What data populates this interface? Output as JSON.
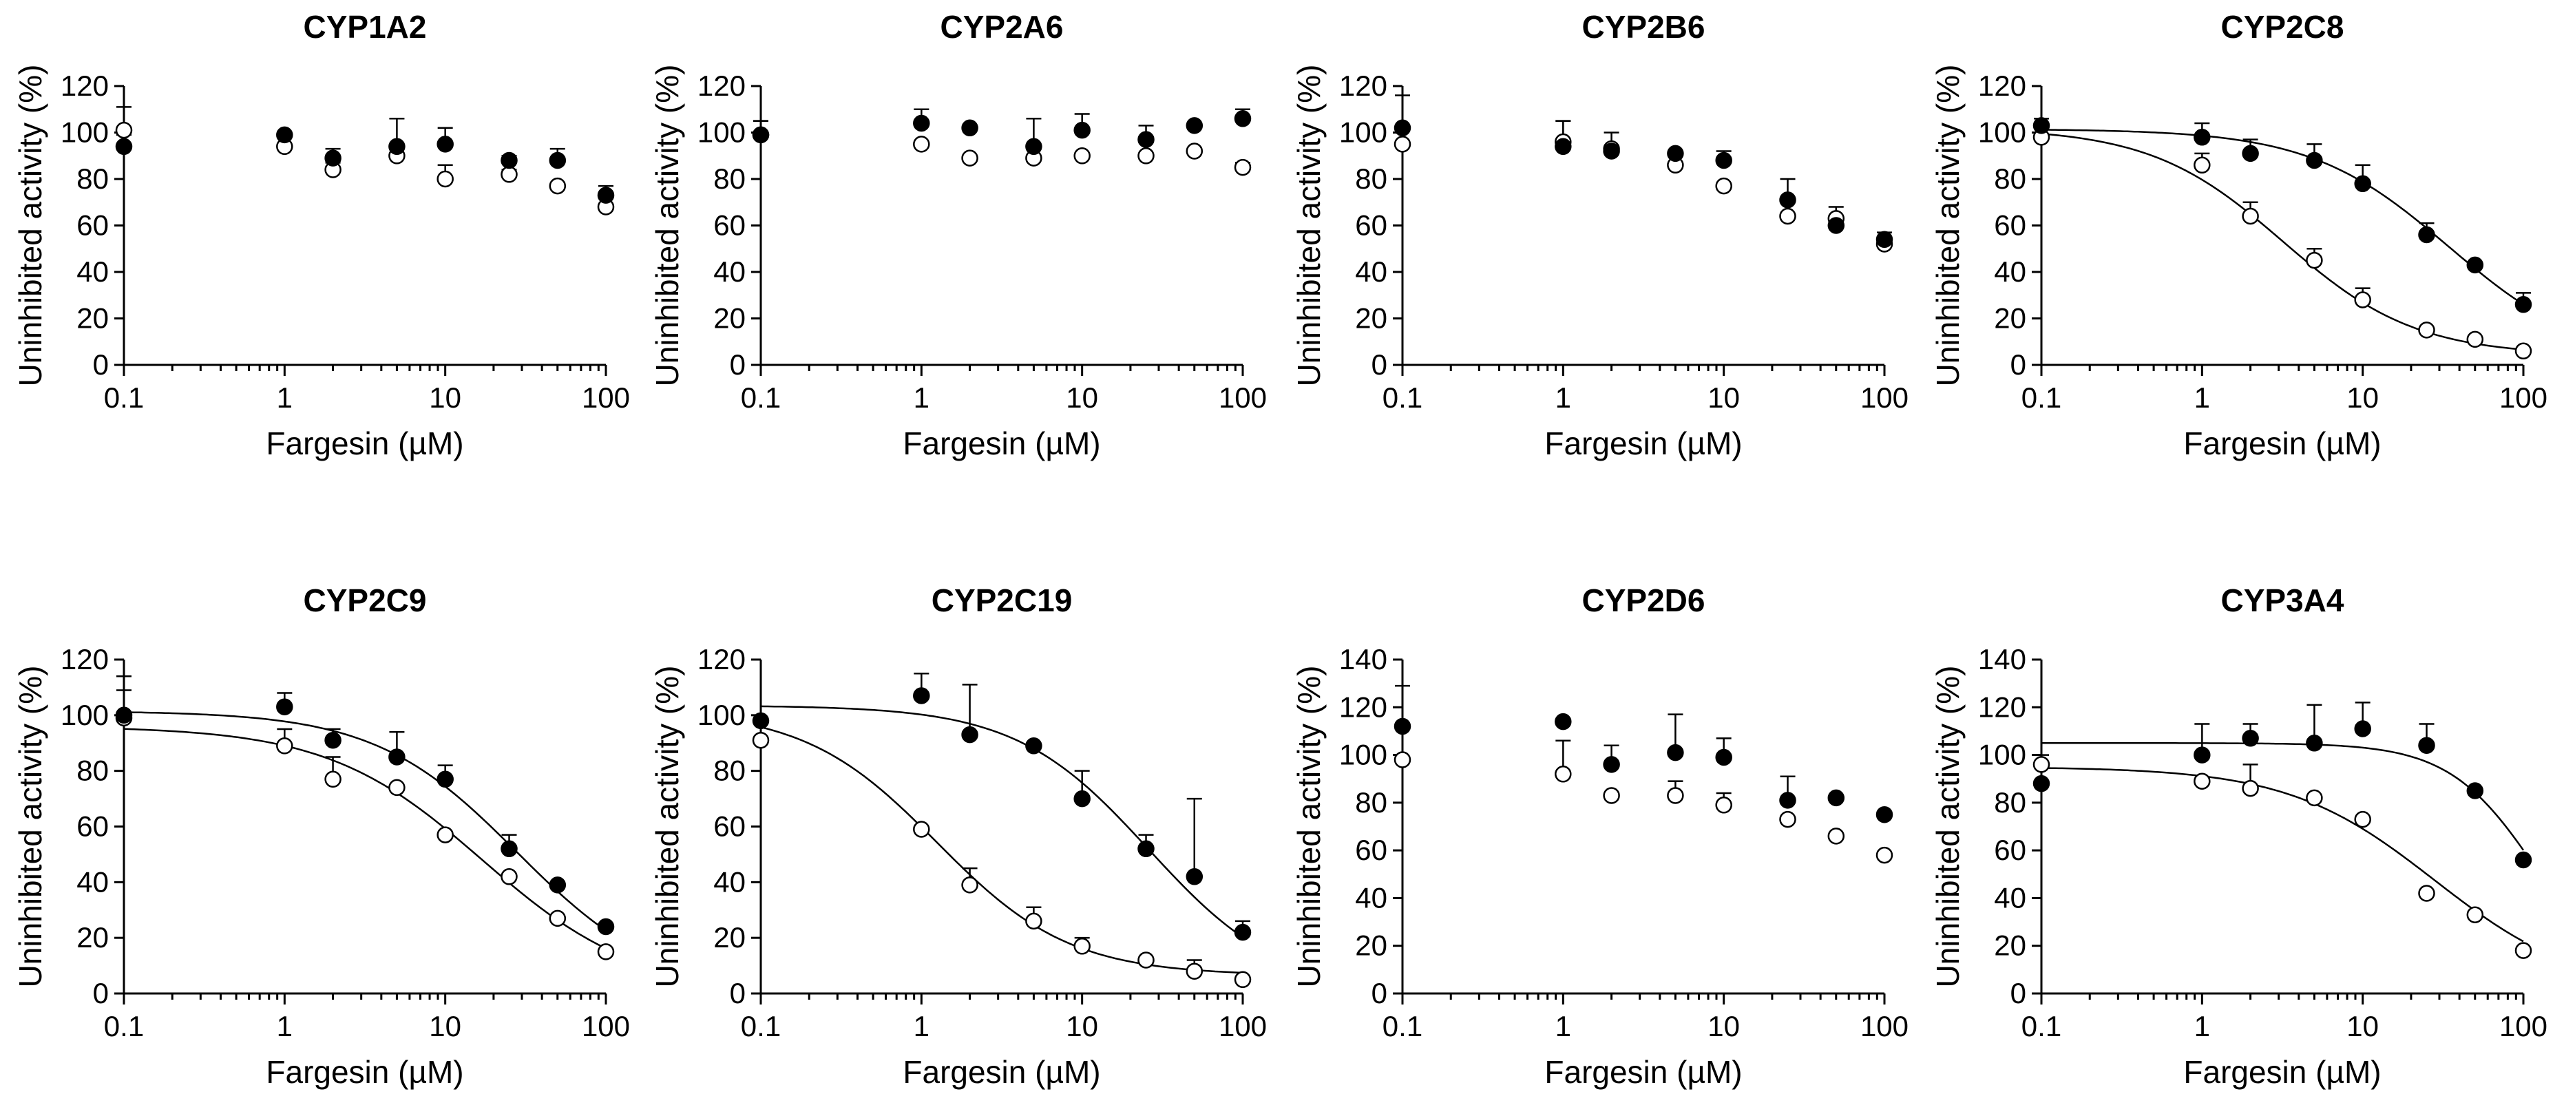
{
  "chart_data": [
    {
      "type": "scatter",
      "title": "CYP1A2",
      "xlabel": "Fargesin (µM)",
      "ylabel": "Uninhibited activity (%)",
      "xscale": "log",
      "xlim": [
        0.1,
        100
      ],
      "xticks": [
        "0.1",
        "1",
        "10",
        "100"
      ],
      "ylim": [
        0,
        120
      ],
      "yticks": [
        "0",
        "20",
        "40",
        "60",
        "80",
        "100",
        "120"
      ],
      "x": [
        0.1,
        1,
        2,
        5,
        10,
        25,
        50,
        100
      ],
      "series": [
        {
          "name": "filled",
          "marker": "filled-circle",
          "values": [
            94,
            99,
            89,
            94,
            95,
            88,
            88,
            73
          ],
          "errors": [
            5,
            0,
            4,
            12,
            7,
            2,
            5,
            4
          ],
          "fit": null
        },
        {
          "name": "open",
          "marker": "open-circle",
          "values": [
            101,
            94,
            84,
            90,
            80,
            82,
            77,
            68
          ],
          "errors": [
            10,
            0,
            3,
            5,
            6,
            2,
            0,
            0
          ],
          "fit": null
        }
      ]
    },
    {
      "type": "scatter",
      "title": "CYP2A6",
      "xlabel": "Fargesin (µM)",
      "ylabel": "Uninhibited activity (%)",
      "xscale": "log",
      "xlim": [
        0.1,
        100
      ],
      "xticks": [
        "0.1",
        "1",
        "10",
        "100"
      ],
      "ylim": [
        0,
        120
      ],
      "yticks": [
        "0",
        "20",
        "40",
        "60",
        "80",
        "100",
        "120"
      ],
      "x": [
        0.1,
        1,
        2,
        5,
        10,
        25,
        50,
        100
      ],
      "series": [
        {
          "name": "filled",
          "marker": "filled-circle",
          "values": [
            99,
            104,
            102,
            94,
            101,
            97,
            103,
            106
          ],
          "errors": [
            6,
            6,
            0,
            12,
            7,
            6,
            0,
            4
          ],
          "fit": null
        },
        {
          "name": "open",
          "marker": "open-circle",
          "values": [
            99,
            95,
            89,
            89,
            90,
            90,
            92,
            85
          ],
          "errors": [
            6,
            0,
            0,
            0,
            0,
            0,
            0,
            2
          ],
          "fit": null
        }
      ]
    },
    {
      "type": "scatter",
      "title": "CYP2B6",
      "xlabel": "Fargesin (µM)",
      "ylabel": "Uninhibited activity (%)",
      "xscale": "log",
      "xlim": [
        0.1,
        100
      ],
      "xticks": [
        "0.1",
        "1",
        "10",
        "100"
      ],
      "ylim": [
        0,
        120
      ],
      "yticks": [
        "0",
        "20",
        "40",
        "60",
        "80",
        "100",
        "120"
      ],
      "x": [
        0.1,
        1,
        2,
        5,
        10,
        25,
        50,
        100
      ],
      "series": [
        {
          "name": "filled",
          "marker": "filled-circle",
          "values": [
            102,
            94,
            92,
            91,
            88,
            71,
            60,
            54
          ],
          "errors": [
            14,
            11,
            8,
            0,
            4,
            9,
            8,
            3
          ],
          "fit": null
        },
        {
          "name": "open",
          "marker": "open-circle",
          "values": [
            95,
            96,
            93,
            86,
            77,
            64,
            63,
            52
          ],
          "errors": [
            0,
            9,
            0,
            0,
            0,
            0,
            0,
            0
          ],
          "fit": null
        }
      ]
    },
    {
      "type": "scatter",
      "title": "CYP2C8",
      "xlabel": "Fargesin (µM)",
      "ylabel": "Uninhibited activity (%)",
      "xscale": "log",
      "xlim": [
        0.1,
        100
      ],
      "xticks": [
        "0.1",
        "1",
        "10",
        "100"
      ],
      "ylim": [
        0,
        120
      ],
      "yticks": [
        "0",
        "20",
        "40",
        "60",
        "80",
        "100",
        "120"
      ],
      "x": [
        0.1,
        1,
        2,
        5,
        10,
        25,
        50,
        100
      ],
      "series": [
        {
          "name": "filled",
          "marker": "filled-circle",
          "values": [
            103,
            98,
            91,
            88,
            78,
            56,
            43,
            26
          ],
          "errors": [
            3,
            6,
            6,
            7,
            8,
            5,
            0,
            5
          ],
          "fit": {
            "top": 101.5,
            "bottom": 0,
            "ic50": 34.5,
            "hill": 1
          }
        },
        {
          "name": "open",
          "marker": "open-circle",
          "values": [
            98,
            86,
            64,
            45,
            28,
            15,
            11,
            6
          ],
          "errors": [
            0,
            5,
            6,
            5,
            5,
            0,
            0,
            0
          ],
          "fit": {
            "top": 102,
            "bottom": 4,
            "ic50": 3.2,
            "hill": 1.05
          }
        }
      ]
    },
    {
      "type": "scatter",
      "title": "CYP2C9",
      "xlabel": "Fargesin (µM)",
      "ylabel": "Uninhibited activity (%)",
      "xscale": "log",
      "xlim": [
        0.1,
        100
      ],
      "xticks": [
        "0.1",
        "1",
        "10",
        "100"
      ],
      "ylim": [
        0,
        120
      ],
      "yticks": [
        "0",
        "20",
        "40",
        "60",
        "80",
        "100",
        "120"
      ],
      "x": [
        0.1,
        1,
        2,
        5,
        10,
        25,
        50,
        100
      ],
      "series": [
        {
          "name": "filled",
          "marker": "filled-circle",
          "values": [
            100,
            103,
            91,
            85,
            77,
            52,
            39,
            24
          ],
          "errors": [
            14,
            5,
            4,
            9,
            5,
            5,
            0,
            0
          ],
          "fit": {
            "top": 101.5,
            "bottom": 0,
            "ic50": 28,
            "hill": 0.98
          }
        },
        {
          "name": "open",
          "marker": "open-circle",
          "values": [
            99,
            89,
            77,
            74,
            57,
            42,
            27,
            15
          ],
          "errors": [
            10,
            6,
            8,
            0,
            0,
            0,
            0,
            0
          ],
          "fit": {
            "top": 96,
            "bottom": 0,
            "ic50": 17,
            "hill": 0.9
          }
        }
      ]
    },
    {
      "type": "scatter",
      "title": "CYP2C19",
      "xlabel": "Fargesin (µM)",
      "ylabel": "Uninhibited activity (%)",
      "xscale": "log",
      "xlim": [
        0.1,
        100
      ],
      "xticks": [
        "0.1",
        "1",
        "10",
        "100"
      ],
      "ylim": [
        0,
        120
      ],
      "yticks": [
        "0",
        "20",
        "40",
        "60",
        "80",
        "100",
        "120"
      ],
      "x": [
        0.1,
        1,
        2,
        5,
        10,
        25,
        50,
        100
      ],
      "series": [
        {
          "name": "filled",
          "marker": "filled-circle",
          "values": [
            98,
            107,
            93,
            89,
            70,
            52,
            42,
            22
          ],
          "errors": [
            0,
            8,
            18,
            0,
            10,
            5,
            28,
            4
          ],
          "fit": {
            "top": 103.5,
            "bottom": 0,
            "ic50": 26,
            "hill": 1.05
          }
        },
        {
          "name": "open",
          "marker": "open-circle",
          "values": [
            91,
            59,
            39,
            26,
            17,
            12,
            8,
            5
          ],
          "errors": [
            0,
            0,
            6,
            5,
            3,
            0,
            4,
            0
          ],
          "fit": {
            "top": 102,
            "bottom": 6.5,
            "ic50": 1.25,
            "hill": 1.05
          }
        }
      ]
    },
    {
      "type": "scatter",
      "title": "CYP2D6",
      "xlabel": "Fargesin (µM)",
      "ylabel": "Uninhibited activity (%)",
      "xscale": "log",
      "xlim": [
        0.1,
        100
      ],
      "xticks": [
        "0.1",
        "1",
        "10",
        "100"
      ],
      "ylim": [
        0,
        140
      ],
      "yticks": [
        "0",
        "20",
        "40",
        "60",
        "80",
        "100",
        "120",
        "140"
      ],
      "x": [
        0.1,
        1,
        2,
        5,
        10,
        25,
        50,
        100
      ],
      "series": [
        {
          "name": "filled",
          "marker": "filled-circle",
          "values": [
            112,
            114,
            96,
            101,
            99,
            81,
            82,
            75
          ],
          "errors": [
            17,
            0,
            8,
            16,
            8,
            10,
            0,
            0
          ],
          "fit": null
        },
        {
          "name": "open",
          "marker": "open-circle",
          "values": [
            98,
            92,
            83,
            83,
            79,
            73,
            66,
            58
          ],
          "errors": [
            0,
            14,
            0,
            6,
            5,
            0,
            0,
            0
          ],
          "fit": null
        }
      ]
    },
    {
      "type": "scatter",
      "title": "CYP3A4",
      "xlabel": "Fargesin (µM)",
      "ylabel": "Uninhibited activity (%)",
      "xscale": "log",
      "xlim": [
        0.1,
        100
      ],
      "xticks": [
        "0.1",
        "1",
        "10",
        "100"
      ],
      "ylim": [
        0,
        140
      ],
      "yticks": [
        "0",
        "20",
        "40",
        "60",
        "80",
        "100",
        "120",
        "140"
      ],
      "x": [
        0.1,
        1,
        2,
        5,
        10,
        25,
        50,
        100
      ],
      "series": [
        {
          "name": "filled",
          "marker": "filled-circle",
          "values": [
            88,
            100,
            107,
            105,
            111,
            104,
            85,
            56
          ],
          "errors": [
            0,
            13,
            6,
            16,
            11,
            9,
            0,
            0
          ],
          "fit": {
            "top": 105,
            "bottom": 0,
            "ic50": 120,
            "hill": 1.6
          }
        },
        {
          "name": "open",
          "marker": "open-circle",
          "values": [
            96,
            89,
            86,
            82,
            73,
            42,
            33,
            18
          ],
          "errors": [
            4,
            0,
            10,
            0,
            0,
            0,
            0,
            0
          ],
          "fit": {
            "top": 95,
            "bottom": 0,
            "ic50": 28,
            "hill": 0.95
          }
        }
      ]
    }
  ]
}
